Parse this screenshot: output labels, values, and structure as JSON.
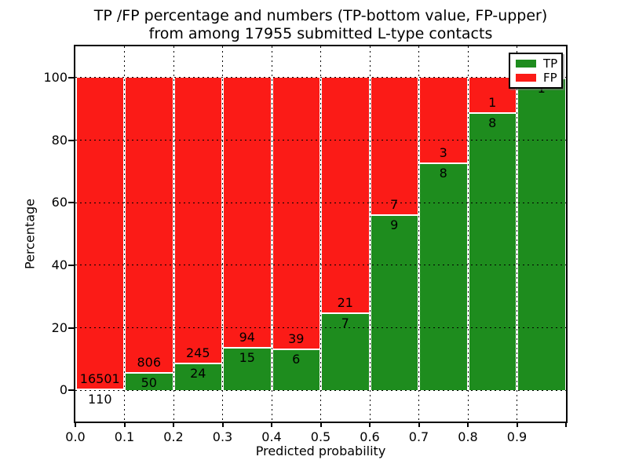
{
  "title_line1": "TP /FP percentage and numbers (TP-bottom value, FP-upper)",
  "title_line2": "from among 17955 submitted L-type contacts",
  "xlabel": "Predicted probability",
  "ylabel": "Percentage",
  "legend": {
    "tp_label": "TP",
    "fp_label": "FP"
  },
  "chart_data": {
    "type": "bar",
    "stacked": true,
    "title": "TP /FP percentage and numbers (TP-bottom value, FP-upper) from among 17955 submitted L-type contacts",
    "xlabel": "Predicted probability",
    "ylabel": "Percentage",
    "xlim": [
      0.0,
      1.0
    ],
    "ylim": [
      -10,
      110
    ],
    "grid": true,
    "legend_position": "upper right",
    "x_tick_labels": [
      "0.0",
      "0.1",
      "0.2",
      "0.3",
      "0.4",
      "0.5",
      "0.6",
      "0.7",
      "0.8",
      "0.9"
    ],
    "y_ticks": [
      0,
      20,
      40,
      60,
      80,
      100
    ],
    "total_submitted": 17955,
    "series": [
      {
        "name": "TP",
        "color": "#1e8c1e",
        "counts": [
          110,
          50,
          24,
          15,
          6,
          7,
          9,
          8,
          8,
          1
        ]
      },
      {
        "name": "FP",
        "color": "#fb1b17",
        "counts": [
          16501,
          806,
          245,
          94,
          39,
          21,
          7,
          3,
          1,
          0
        ]
      }
    ],
    "bins": [
      {
        "range": [
          0.0,
          0.1
        ],
        "tp": 110,
        "fp": 16501,
        "tp_pct": 0.66,
        "fp_label": "16501",
        "tp_label": "110"
      },
      {
        "range": [
          0.1,
          0.2
        ],
        "tp": 50,
        "fp": 806,
        "tp_pct": 5.84,
        "fp_label": "806",
        "tp_label": "50"
      },
      {
        "range": [
          0.2,
          0.3
        ],
        "tp": 24,
        "fp": 245,
        "tp_pct": 8.92,
        "fp_label": "245",
        "tp_label": "24"
      },
      {
        "range": [
          0.3,
          0.4
        ],
        "tp": 15,
        "fp": 94,
        "tp_pct": 13.76,
        "fp_label": "94",
        "tp_label": "15"
      },
      {
        "range": [
          0.4,
          0.5
        ],
        "tp": 6,
        "fp": 39,
        "tp_pct": 13.33,
        "fp_label": "39",
        "tp_label": "6"
      },
      {
        "range": [
          0.5,
          0.6
        ],
        "tp": 7,
        "fp": 21,
        "tp_pct": 25.0,
        "fp_label": "21",
        "tp_label": "7"
      },
      {
        "range": [
          0.6,
          0.7
        ],
        "tp": 9,
        "fp": 7,
        "tp_pct": 56.25,
        "fp_label": "7",
        "tp_label": "9"
      },
      {
        "range": [
          0.7,
          0.8
        ],
        "tp": 8,
        "fp": 3,
        "tp_pct": 72.73,
        "fp_label": "3",
        "tp_label": "8"
      },
      {
        "range": [
          0.8,
          0.9
        ],
        "tp": 8,
        "fp": 1,
        "tp_pct": 88.89,
        "fp_label": "1",
        "tp_label": "8"
      },
      {
        "range": [
          0.9,
          1.0
        ],
        "tp": 1,
        "fp": 0,
        "tp_pct": 100.0,
        "fp_label": "",
        "tp_label": "1"
      }
    ]
  }
}
